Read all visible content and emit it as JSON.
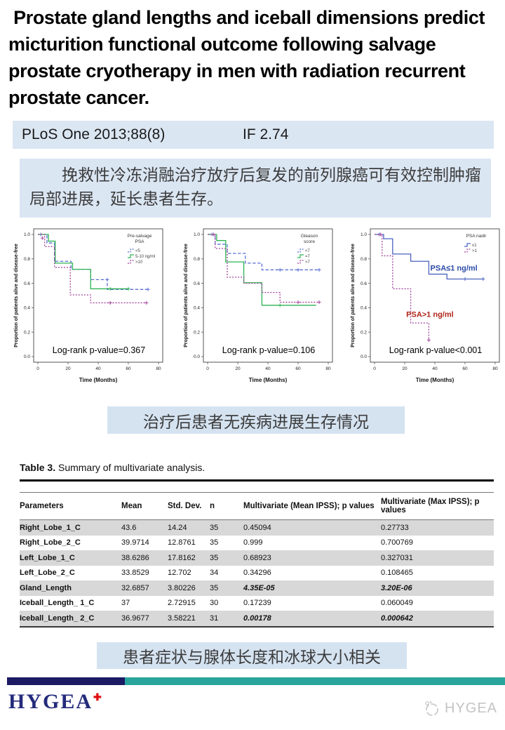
{
  "header": {
    "title": " Prostate gland lengths and iceball dimensions predict micturition functional outcome following salvage prostate cryotherapy in men with radiation recurrent prostate cancer."
  },
  "journal_bar": {
    "citation": "PLoS One 2013;88(8)",
    "impact_factor": "IF 2.74",
    "bg_color": "#dbe6f3"
  },
  "summary_cn": "挽救性冷冻消融治疗放疗后复发的前列腺癌可有效控制肿瘤局部进展，延长患者生存。",
  "captions": {
    "survival": "治疗后患者无疾病进展生存情况",
    "correlation": "患者症状与腺体长度和冰球大小相关"
  },
  "chart_data": [
    {
      "type": "line",
      "subtype": "kaplan-meier-step",
      "title": "",
      "xlabel": "Time (Months)",
      "ylabel": "Proportion of patients alive and disease-free",
      "xlim": [
        0,
        85
      ],
      "xticks": [
        0,
        20,
        40,
        60,
        80
      ],
      "ylim": [
        0,
        1.05
      ],
      "yticks": [
        0.0,
        0.2,
        0.4,
        0.6,
        0.8,
        1.0
      ],
      "grid": false,
      "legend_position": "top-right",
      "legend_title": "Pre-salvage\nPSA",
      "pvalue_label": "Log-rank p-value=0.367",
      "series": [
        {
          "name": "<5",
          "color": "#5b6fd4",
          "dash": [
            4.5,
            2.5
          ],
          "points": [
            [
              0,
              1
            ],
            [
              6,
              1
            ],
            [
              6,
              0.93
            ],
            [
              11,
              0.93
            ],
            [
              11,
              0.78
            ],
            [
              22,
              0.78
            ],
            [
              22,
              0.715
            ],
            [
              35,
              0.715
            ],
            [
              35,
              0.63
            ],
            [
              46,
              0.63
            ],
            [
              46,
              0.55
            ],
            [
              73,
              0.55
            ]
          ],
          "marks": [
            [
              2,
              1.0
            ],
            [
              46,
              0.63
            ],
            [
              73,
              0.55
            ]
          ]
        },
        {
          "name": "5-10 ng/ml",
          "color": "#2eb353",
          "dash": null,
          "points": [
            [
              0,
              1
            ],
            [
              7,
              1
            ],
            [
              7,
              0.945
            ],
            [
              11.5,
              0.945
            ],
            [
              11.5,
              0.765
            ],
            [
              23,
              0.765
            ],
            [
              23,
              0.715
            ],
            [
              35,
              0.715
            ],
            [
              35,
              0.555
            ],
            [
              60,
              0.555
            ]
          ],
          "marks": [
            [
              48,
              0.555
            ],
            [
              60,
              0.555
            ]
          ]
        },
        {
          "name": ">10",
          "color": "#a2449c",
          "dash": [
            2,
            2
          ],
          "points": [
            [
              0,
              1
            ],
            [
              4.5,
              1
            ],
            [
              4.5,
              0.9
            ],
            [
              11,
              0.9
            ],
            [
              11,
              0.73
            ],
            [
              21.5,
              0.73
            ],
            [
              21.5,
              0.505
            ],
            [
              35,
              0.505
            ],
            [
              35,
              0.44
            ],
            [
              72,
              0.44
            ]
          ],
          "marks": [
            [
              3,
              0.97
            ],
            [
              48,
              0.44
            ],
            [
              72,
              0.44
            ]
          ]
        }
      ],
      "annotations": []
    },
    {
      "type": "line",
      "subtype": "kaplan-meier-step",
      "title": "",
      "xlabel": "Time (Months)",
      "ylabel": "Proportion of patients alive and disease-free",
      "xlim": [
        0,
        85
      ],
      "xticks": [
        0,
        20,
        40,
        60,
        80
      ],
      "ylim": [
        0,
        1.05
      ],
      "yticks": [
        0.0,
        0.2,
        0.4,
        0.6,
        0.8,
        1.0
      ],
      "grid": false,
      "legend_position": "top-right",
      "legend_title": "Gleason\nscore",
      "pvalue_label": "Log-rank p-value=0.106",
      "series": [
        {
          "name": "<7",
          "color": "#5b6fd4",
          "dash": [
            4.5,
            2.5
          ],
          "points": [
            [
              0,
              1
            ],
            [
              5,
              1
            ],
            [
              5,
              0.92
            ],
            [
              13,
              0.92
            ],
            [
              13,
              0.845
            ],
            [
              25,
              0.845
            ],
            [
              25,
              0.765
            ],
            [
              36,
              0.765
            ],
            [
              36,
              0.71
            ],
            [
              74,
              0.71
            ]
          ],
          "marks": [
            [
              3,
              1.0
            ],
            [
              48,
              0.71
            ],
            [
              60,
              0.71
            ],
            [
              74,
              0.71
            ]
          ]
        },
        {
          "name": "=7",
          "color": "#2eb353",
          "dash": null,
          "points": [
            [
              0,
              1
            ],
            [
              6,
              1
            ],
            [
              6,
              0.95
            ],
            [
              12,
              0.95
            ],
            [
              12,
              0.775
            ],
            [
              24,
              0.775
            ],
            [
              24,
              0.605
            ],
            [
              36,
              0.605
            ],
            [
              36,
              0.42
            ],
            [
              72,
              0.42
            ]
          ],
          "marks": [
            [
              48,
              0.42
            ]
          ]
        },
        {
          "name": ">7",
          "color": "#a2449c",
          "dash": [
            2,
            2
          ],
          "points": [
            [
              0,
              1
            ],
            [
              5,
              1
            ],
            [
              5,
              0.885
            ],
            [
              13,
              0.885
            ],
            [
              13,
              0.65
            ],
            [
              24,
              0.65
            ],
            [
              24,
              0.6
            ],
            [
              36,
              0.6
            ],
            [
              36,
              0.525
            ],
            [
              48,
              0.525
            ],
            [
              48,
              0.445
            ],
            [
              74,
              0.445
            ]
          ],
          "marks": [
            [
              4,
              1.0
            ],
            [
              60,
              0.445
            ],
            [
              74,
              0.445
            ]
          ]
        }
      ],
      "annotations": []
    },
    {
      "type": "line",
      "subtype": "kaplan-meier-step",
      "title": "",
      "xlabel": "Time (Months)",
      "ylabel": "Proportion of patients alive and disease-free",
      "xlim": [
        0,
        85
      ],
      "xticks": [
        0,
        20,
        40,
        60,
        80
      ],
      "ylim": [
        0,
        1.05
      ],
      "yticks": [
        0.0,
        0.2,
        0.4,
        0.6,
        0.8,
        1.0
      ],
      "grid": false,
      "legend_position": "top-right",
      "legend_title": "PSA nadir",
      "pvalue_label": "Log-rank p-value<0.001",
      "series": [
        {
          "name": "≤1",
          "color": "#4a63c0",
          "dash": null,
          "points": [
            [
              0,
              1
            ],
            [
              6,
              1
            ],
            [
              6,
              0.965
            ],
            [
              12,
              0.965
            ],
            [
              12,
              0.84
            ],
            [
              24,
              0.84
            ],
            [
              24,
              0.78
            ],
            [
              36,
              0.78
            ],
            [
              36,
              0.675
            ],
            [
              48,
              0.675
            ],
            [
              48,
              0.635
            ],
            [
              72,
              0.635
            ]
          ],
          "marks": [
            [
              3,
              1.0
            ],
            [
              60,
              0.635
            ],
            [
              72,
              0.635
            ]
          ]
        },
        {
          "name": ">1",
          "color": "#a2449c",
          "dash": [
            2,
            2
          ],
          "points": [
            [
              0,
              1
            ],
            [
              5,
              1
            ],
            [
              5,
              0.825
            ],
            [
              12,
              0.825
            ],
            [
              12,
              0.555
            ],
            [
              24,
              0.555
            ],
            [
              24,
              0.275
            ],
            [
              36,
              0.275
            ],
            [
              36,
              0.135
            ]
          ],
          "marks": [
            [
              4,
              1.0
            ],
            [
              36,
              0.135
            ]
          ]
        }
      ],
      "annotations": [
        {
          "text": "PSA≤1 ng/ml",
          "color": "#2b4ba6",
          "x": 37,
          "y": 0.705
        },
        {
          "text": "PSA>1 ng/ml",
          "color": "#b02318",
          "x": 21,
          "y": 0.325
        }
      ]
    }
  ],
  "table": {
    "title_prefix": "Table 3.",
    "title_rest": " Summary of multivariate analysis.",
    "columns": [
      "Parameters",
      "Mean",
      "Std. Dev.",
      "n",
      "Multivariate (Mean IPSS); p values",
      "Multivariate (Max IPSS); p values"
    ],
    "rows": [
      {
        "param": "Right_Lobe_1_C",
        "mean": "43.6",
        "sd": "14.24",
        "n": "35",
        "p_mean": "0.45094",
        "p_max": "0.27733",
        "sig": false
      },
      {
        "param": "Right_Lobe_2_C",
        "mean": "39.9714",
        "sd": "12.8761",
        "n": "35",
        "p_mean": "0.999",
        "p_max": "0.700769",
        "sig": false
      },
      {
        "param": "Left_Lobe_1_C",
        "mean": "38.6286",
        "sd": "17.8162",
        "n": "35",
        "p_mean": "0.68923",
        "p_max": "0.327031",
        "sig": false
      },
      {
        "param": "Left_Lobe_2_C",
        "mean": "33.8529",
        "sd": "12.702",
        "n": "34",
        "p_mean": "0.34296",
        "p_max": "0.108465",
        "sig": false
      },
      {
        "param": "Gland_Length",
        "mean": "32.6857",
        "sd": "3.80226",
        "n": "35",
        "p_mean": "4.35E-05",
        "p_max": "3.20E-06",
        "sig": true
      },
      {
        "param": "Iceball_Length_ 1_C",
        "mean": "37",
        "sd": "2.72915",
        "n": "30",
        "p_mean": "0.17239",
        "p_max": "0.060049",
        "sig": false
      },
      {
        "param": "Iceball_Length_ 2_C",
        "mean": "36.9677",
        "sd": "3.58221",
        "n": "31",
        "p_mean": "0.00178",
        "p_max": "0.000642",
        "sig": true
      }
    ]
  },
  "footer": {
    "logo_text": "HYGEA",
    "logo_plus": "✚",
    "watermark_text": "HYGEA",
    "navy_color": "#1b1a63",
    "teal_color": "#2aa59c"
  }
}
